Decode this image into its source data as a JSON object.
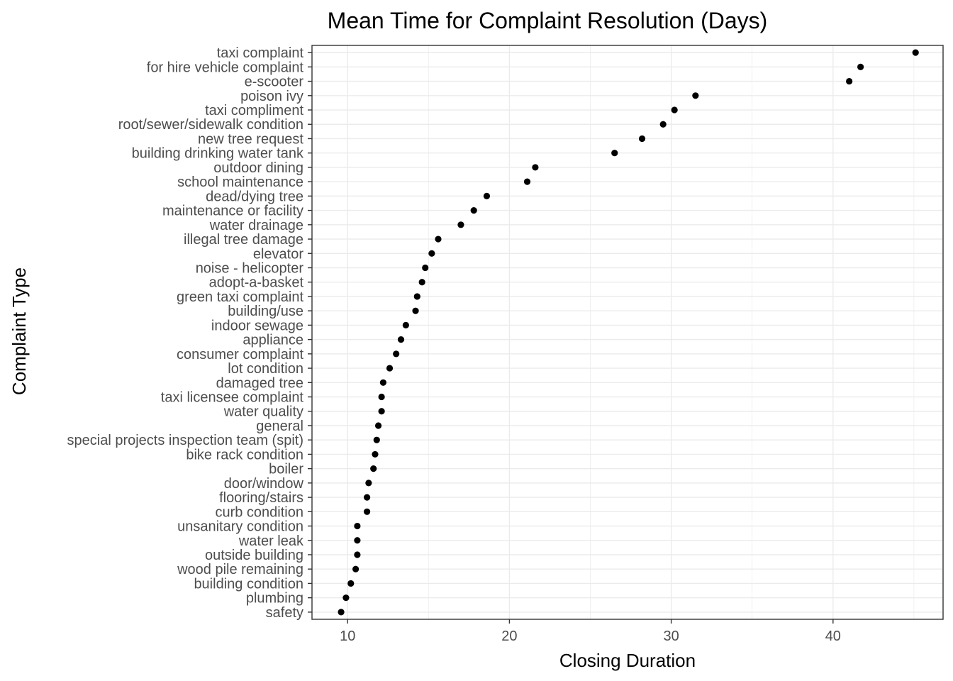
{
  "chart_data": {
    "type": "scatter",
    "title": "Mean Time for Complaint Resolution (Days)",
    "xlabel": "Closing Duration",
    "ylabel": "Complaint Type",
    "xlim": [
      7.8,
      46.8
    ],
    "xticks": [
      10,
      20,
      30,
      40
    ],
    "grid": true,
    "categories": [
      "taxi complaint",
      "for hire vehicle complaint",
      "e-scooter",
      "poison ivy",
      "taxi compliment",
      "root/sewer/sidewalk condition",
      "new tree request",
      "building drinking water tank",
      "outdoor dining",
      "school maintenance",
      "dead/dying tree",
      "maintenance or facility",
      "water drainage",
      "illegal tree damage",
      "elevator",
      "noise - helicopter",
      "adopt-a-basket",
      "green taxi complaint",
      "building/use",
      "indoor sewage",
      "appliance",
      "consumer complaint",
      "lot condition",
      "damaged tree",
      "taxi licensee complaint",
      "water quality",
      "general",
      "special projects inspection team (spit)",
      "bike rack condition",
      "boiler",
      "door/window",
      "flooring/stairs",
      "curb condition",
      "unsanitary condition",
      "water leak",
      "outside building",
      "wood pile remaining",
      "building condition",
      "plumbing",
      "safety"
    ],
    "values": [
      45.1,
      41.7,
      41.0,
      31.5,
      30.2,
      29.5,
      28.2,
      26.5,
      21.6,
      21.1,
      18.6,
      17.8,
      17.0,
      15.6,
      15.2,
      14.8,
      14.6,
      14.3,
      14.2,
      13.6,
      13.3,
      13.0,
      12.6,
      12.2,
      12.1,
      12.1,
      11.9,
      11.8,
      11.7,
      11.6,
      11.3,
      11.2,
      11.2,
      10.6,
      10.6,
      10.6,
      10.5,
      10.2,
      9.9,
      9.6
    ]
  }
}
